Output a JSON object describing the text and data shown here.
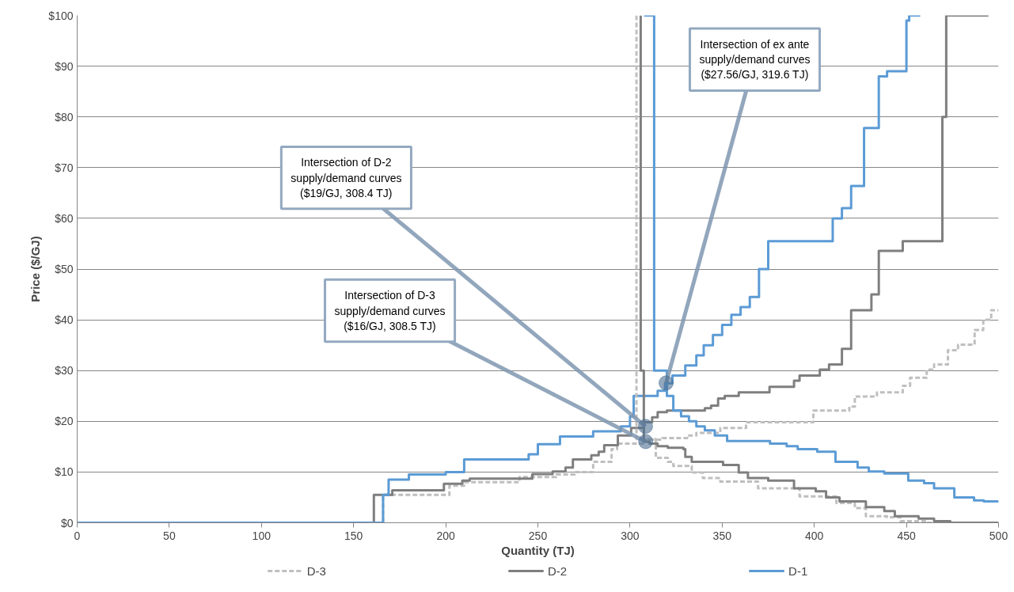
{
  "chart_data": {
    "type": "step",
    "xlabel": "Quantity (TJ)",
    "ylabel": "Price ($/GJ)",
    "xlim": [
      0,
      500
    ],
    "xticks": [
      0,
      50,
      100,
      150,
      200,
      250,
      300,
      350,
      400,
      450,
      500
    ],
    "ylim": [
      0,
      100
    ],
    "yticks": [
      {
        "value": 0,
        "label": "$0"
      },
      {
        "value": 10,
        "label": "$10"
      },
      {
        "value": 20,
        "label": "$20"
      },
      {
        "value": 30,
        "label": "$30"
      },
      {
        "value": 40,
        "label": "$40"
      },
      {
        "value": 50,
        "label": "$50"
      },
      {
        "value": 60,
        "label": "$60"
      },
      {
        "value": 70,
        "label": "$70"
      },
      {
        "value": 80,
        "label": "$80"
      },
      {
        "value": 90,
        "label": "$90"
      },
      {
        "value": 100,
        "label": "$100"
      }
    ],
    "grid": "y",
    "legend": "bottom",
    "marker": "none",
    "series": [
      {
        "name": "D-3",
        "color": "#bfbfbf",
        "line_style": "dashed",
        "x": [
          0,
          166,
          202,
          210,
          240,
          260,
          270,
          280,
          290,
          293,
          307.6,
          317.5,
          331,
          336,
          349,
          363,
          399.5,
          419,
          422,
          434,
          448,
          452,
          461,
          465,
          472.5,
          478,
          487,
          491.7,
          496,
          500
        ],
        "values": [
          0,
          5.5,
          7.3,
          8,
          9,
          9.5,
          10,
          12,
          14.5,
          15.6,
          16.4,
          16.7,
          17.2,
          17.7,
          18.7,
          19.8,
          22.1,
          22.9,
          24.9,
          25.7,
          27,
          28.6,
          30.2,
          31.2,
          34,
          35.1,
          38,
          40,
          41.9,
          41.9
        ]
      },
      {
        "name": "D-2",
        "color": "#7f7f7f",
        "line_style": "solid",
        "x": [
          0,
          161,
          171,
          199,
          209,
          213,
          247,
          258,
          265,
          269,
          279,
          283,
          286,
          293.4,
          300.6,
          307.6,
          312,
          315,
          320,
          340.6,
          344,
          347.8,
          351.4,
          359,
          375.7,
          389,
          392,
          403,
          408,
          415,
          420,
          431,
          435,
          448,
          469.5,
          471.6,
          494.5
        ],
        "values": [
          0,
          5.5,
          6.4,
          7.7,
          8.3,
          8.7,
          9.6,
          10.1,
          10.9,
          12.5,
          13.3,
          14,
          15.3,
          17.2,
          18.7,
          19.8,
          20.8,
          21.8,
          22.1,
          22.6,
          23.1,
          24.5,
          25,
          25.7,
          26.8,
          28,
          29,
          30.2,
          31.2,
          34.3,
          41.9,
          45,
          53.6,
          55.5,
          80,
          100,
          100
        ]
      },
      {
        "name": "D-1",
        "color": "#5b9bd5",
        "line_style": "solid",
        "x": [
          0,
          166,
          169,
          180,
          200,
          210,
          245,
          250,
          262,
          280,
          295,
          300,
          302,
          315,
          319,
          323,
          330,
          336,
          340,
          345,
          350,
          355,
          360,
          365,
          370,
          375,
          410,
          415,
          420,
          427,
          435,
          439.5,
          450,
          451.5,
          457.5
        ],
        "values": [
          0,
          5.5,
          8.5,
          9.5,
          10,
          12.5,
          13.5,
          15.5,
          17,
          18,
          19,
          21,
          25,
          26,
          27.5,
          29,
          31,
          33,
          35,
          37,
          39,
          41,
          42.5,
          44.5,
          50,
          55.5,
          60,
          62,
          66.4,
          77.8,
          88,
          89,
          99,
          100,
          100
        ]
      },
      {
        "color": "#bfbfbf",
        "line_style": "dashed",
        "x": [
          303.5,
          303.5,
          314,
          320.5,
          323.5,
          333.5,
          339.5,
          349,
          369.5,
          392,
          412,
          422,
          428,
          439.5,
          446.7,
          461,
          500
        ],
        "values": [
          100,
          16.5,
          12.8,
          12,
          11.2,
          9.9,
          8.8,
          8.1,
          6.8,
          5.2,
          3.9,
          2.9,
          1.3,
          1.1,
          0.3,
          0,
          0
        ]
      },
      {
        "color": "#7f7f7f",
        "line_style": "solid",
        "x": [
          305.8,
          305.8,
          307.5,
          310.6,
          315,
          320.5,
          329,
          330,
          333.5,
          350.5,
          359,
          364,
          375,
          389,
          400.8,
          406.4,
          413.7,
          428,
          438,
          443.7,
          456.6,
          465,
          473.8,
          500
        ],
        "values": [
          100,
          30,
          16,
          15.6,
          15.1,
          14.8,
          14.5,
          13,
          12,
          11.4,
          9.9,
          8.8,
          8.3,
          6.8,
          6.2,
          5,
          4.2,
          3.1,
          2.3,
          1.3,
          0.8,
          0.3,
          0,
          0
        ]
      },
      {
        "color": "#5b9bd5",
        "line_style": "solid",
        "x": [
          307.6,
          313.1,
          320,
          323.5,
          327.7,
          332,
          336,
          340.6,
          346,
          352.7,
          376,
          385,
          391,
          401.6,
          411.5,
          423.5,
          429.6,
          438,
          451,
          459.6,
          465,
          476,
          486.7,
          492,
          500
        ],
        "values": [
          100,
          30,
          25,
          22.1,
          21,
          20,
          19,
          18.2,
          17.2,
          16.1,
          15.6,
          15.1,
          14.5,
          14,
          12,
          10.9,
          10.1,
          9.7,
          8.3,
          7.8,
          6.8,
          5,
          4.4,
          4.2,
          4.2
        ]
      }
    ],
    "annotations": [
      {
        "text": "Intersection of D-2\nsupply/demand curves\n($19/GJ, 308.4 TJ)",
        "x": 308.4,
        "y": 19
      },
      {
        "text": "Intersection of D-3\nsupply/demand curves\n($16/GJ, 308.5 TJ)",
        "x": 308.5,
        "y": 16
      },
      {
        "text": "Intersection of ex ante\nsupply/demand curves\n($27.56/GJ, 319.6 TJ)",
        "x": 319.6,
        "y": 27.56
      }
    ]
  }
}
